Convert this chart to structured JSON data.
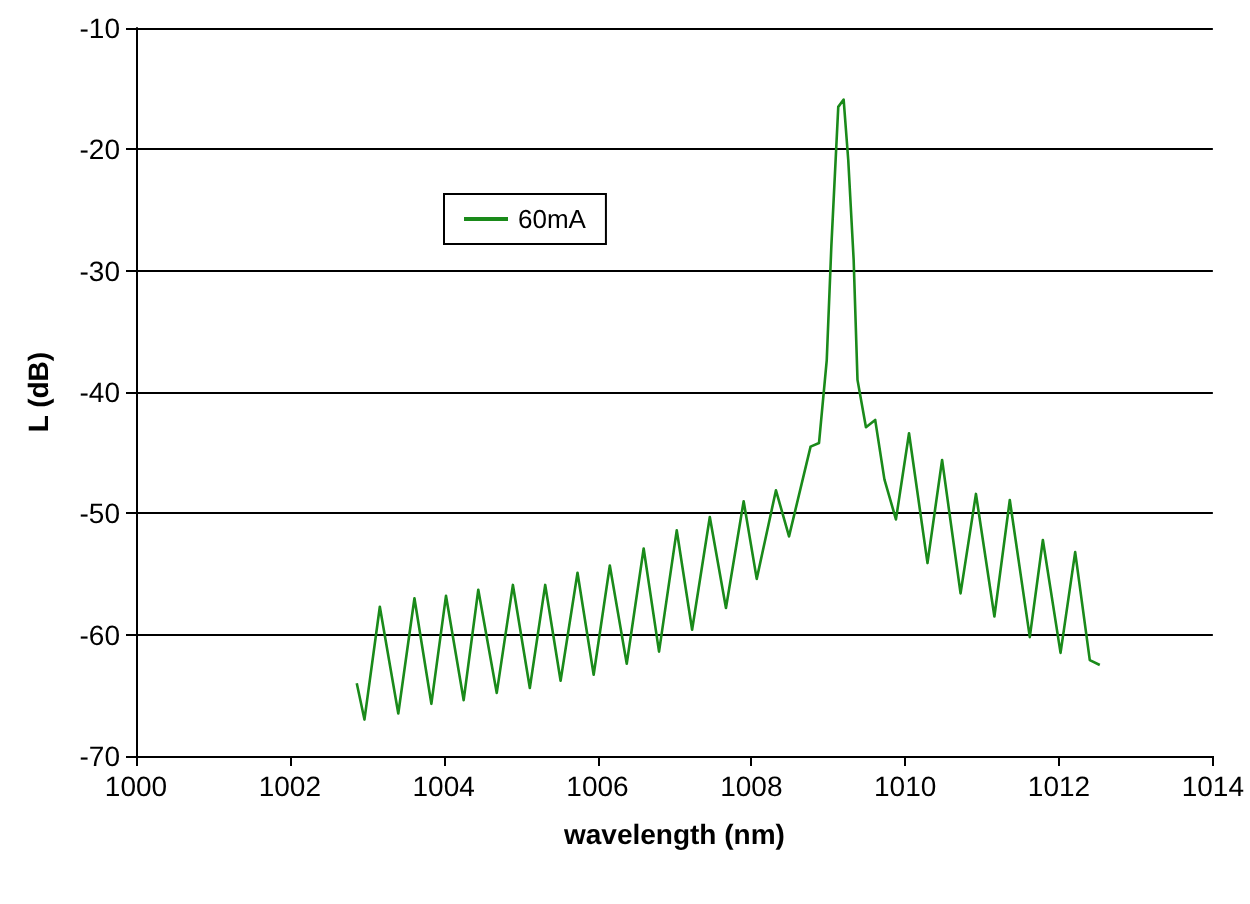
{
  "chart_data": {
    "type": "line",
    "xlabel": "wavelength (nm)",
    "ylabel": "L (dB)",
    "xlim": [
      1000,
      1014
    ],
    "xticks": [
      1000,
      1002,
      1004,
      1006,
      1008,
      1010,
      1012,
      1014
    ],
    "ylim": [
      -70,
      -10
    ],
    "yticks": [
      -70,
      -60,
      -50,
      -40,
      -30,
      -20,
      -10
    ],
    "grid": "y",
    "legend": "top left",
    "marker": "none",
    "line_style": "solid",
    "series": [
      {
        "name": "60mA",
        "color": "#1a8a1a",
        "x": [
          1002.87,
          1002.97,
          1003.17,
          1003.41,
          1003.62,
          1003.84,
          1004.03,
          1004.26,
          1004.45,
          1004.69,
          1004.9,
          1005.12,
          1005.32,
          1005.52,
          1005.74,
          1005.95,
          1006.16,
          1006.38,
          1006.6,
          1006.8,
          1007.03,
          1007.23,
          1007.46,
          1007.67,
          1007.9,
          1008.07,
          1008.32,
          1008.49,
          1008.77,
          1008.88,
          1008.98,
          1009.04,
          1009.13,
          1009.2,
          1009.26,
          1009.33,
          1009.38,
          1009.49,
          1009.61,
          1009.73,
          1009.88,
          1010.05,
          1010.29,
          1010.48,
          1010.72,
          1010.92,
          1011.16,
          1011.36,
          1011.62,
          1011.79,
          1012.02,
          1012.21,
          1012.4,
          1012.53
        ],
        "values": [
          -64,
          -67.0,
          -57.7,
          -66.5,
          -57.0,
          -65.7,
          -56.8,
          -65.4,
          -56.3,
          -64.8,
          -55.9,
          -64.4,
          -55.9,
          -63.8,
          -54.9,
          -63.3,
          -54.3,
          -62.4,
          -52.9,
          -61.4,
          -51.4,
          -59.6,
          -50.3,
          -57.8,
          -49.0,
          -55.4,
          -48.1,
          -51.9,
          -44.5,
          -44.2,
          -37.4,
          -28.0,
          -16.5,
          -15.9,
          -20.9,
          -29.1,
          -39.0,
          -42.9,
          -42.3,
          -47.2,
          -50.5,
          -43.4,
          -54.1,
          -45.6,
          -56.6,
          -48.4,
          -58.5,
          -48.9,
          -60.2,
          -52.2,
          -61.5,
          -53.2,
          -62.1,
          -62.5
        ]
      }
    ]
  }
}
